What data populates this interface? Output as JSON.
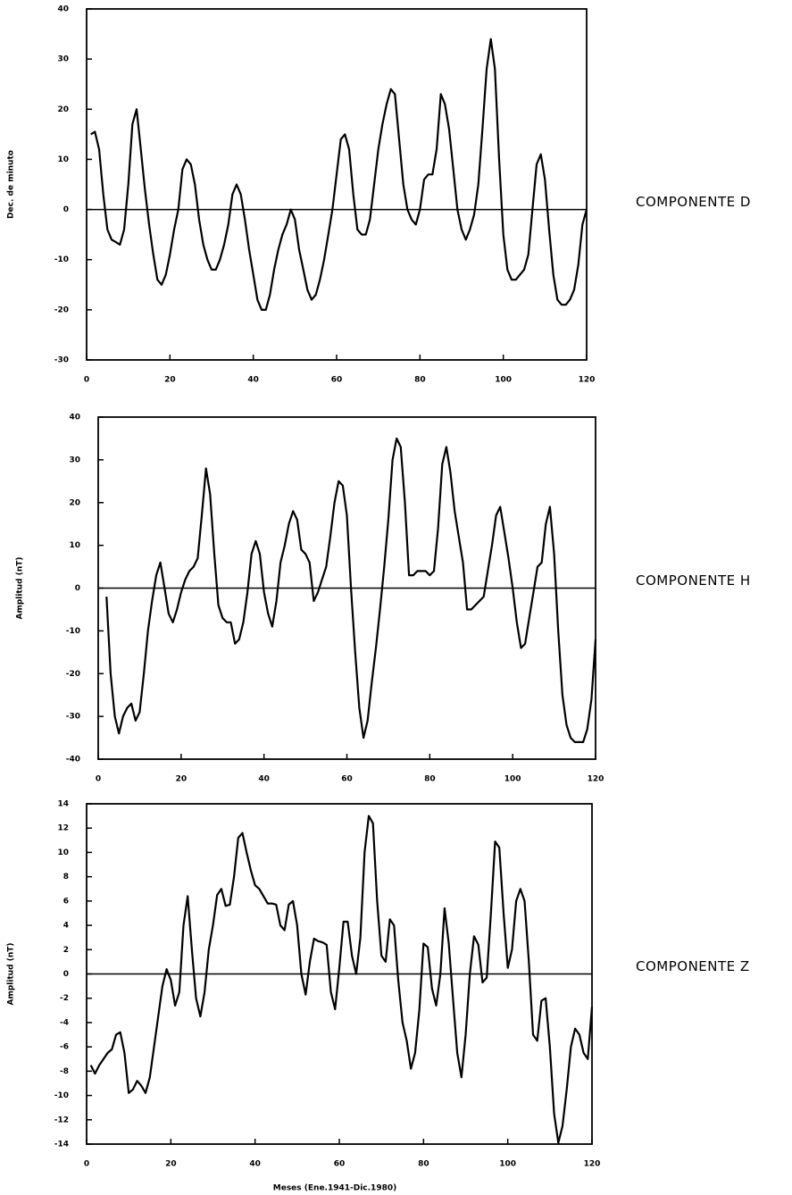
{
  "chart_data": [
    {
      "type": "line",
      "annotation": "COMPONENTE D",
      "ylabel": "Dec. de minuto",
      "xlim": [
        0,
        120
      ],
      "xticks": [
        0,
        20,
        40,
        60,
        80,
        100,
        120
      ],
      "ylim": [
        -30,
        40
      ],
      "yticks": [
        -30,
        -20,
        -10,
        0,
        10,
        20,
        30,
        40
      ],
      "x": [
        1,
        2,
        3,
        4,
        5,
        6,
        7,
        8,
        9,
        10,
        11,
        12,
        13,
        14,
        15,
        16,
        17,
        18,
        19,
        20,
        21,
        22,
        23,
        24,
        25,
        26,
        27,
        28,
        29,
        30,
        31,
        32,
        33,
        34,
        35,
        36,
        37,
        38,
        39,
        40,
        41,
        42,
        43,
        44,
        45,
        46,
        47,
        48,
        49,
        50,
        51,
        52,
        53,
        54,
        55,
        56,
        57,
        58,
        59,
        60,
        61,
        62,
        63,
        64,
        65,
        66,
        67,
        68,
        69,
        70,
        71,
        72,
        73,
        74,
        75,
        76,
        77,
        78,
        79,
        80,
        81,
        82,
        83,
        84,
        85,
        86,
        87,
        88,
        89,
        90,
        91,
        92,
        93,
        94,
        95,
        96,
        97,
        98,
        99,
        100,
        101,
        102,
        103,
        104,
        105,
        106,
        107,
        108,
        109,
        110,
        111,
        112,
        113,
        114,
        115,
        116,
        117,
        118,
        119,
        120
      ],
      "series": [
        {
          "color": "#000000",
          "values": [
            15,
            15.5,
            12,
            3,
            -4,
            -6,
            -6.5,
            -7,
            -4,
            5,
            17,
            20,
            12,
            4,
            -3,
            -9,
            -14,
            -15,
            -13,
            -9,
            -4,
            0,
            8,
            10,
            9,
            5,
            -2,
            -7,
            -10,
            -12,
            -12,
            -10,
            -7,
            -3,
            3,
            5,
            3,
            -2,
            -8,
            -13,
            -18,
            -20,
            -20,
            -17,
            -12,
            -8,
            -5,
            -3,
            0,
            -2,
            -8,
            -12,
            -16,
            -18,
            -17,
            -14,
            -10,
            -5,
            0,
            7,
            14,
            15,
            12,
            3,
            -4,
            -5,
            -5,
            -2,
            5,
            12,
            17,
            21,
            24,
            23,
            14,
            5,
            0,
            -2,
            -3,
            0,
            6,
            7,
            7,
            12,
            23,
            21,
            16,
            8,
            0,
            -4,
            -6,
            -4,
            -1,
            5,
            16,
            28,
            34,
            28,
            10,
            -5,
            -12,
            -14,
            -14,
            -13,
            -12,
            -9,
            0,
            9,
            11,
            6,
            -4,
            -13,
            -18,
            -19,
            -19,
            -18,
            -16,
            -11,
            -3,
            0
          ]
        }
      ]
    },
    {
      "type": "line",
      "annotation": "COMPONENTE H",
      "ylabel": "Amplitud (nT)",
      "xlim": [
        0,
        120
      ],
      "xticks": [
        0,
        20,
        40,
        60,
        80,
        100,
        120
      ],
      "ylim": [
        -40,
        40
      ],
      "yticks": [
        -40,
        -30,
        -20,
        -10,
        0,
        10,
        20,
        30,
        40
      ],
      "x": [
        2,
        3,
        4,
        5,
        6,
        7,
        8,
        9,
        10,
        11,
        12,
        13,
        14,
        15,
        16,
        17,
        18,
        19,
        20,
        21,
        22,
        23,
        24,
        25,
        26,
        27,
        28,
        29,
        30,
        31,
        32,
        33,
        34,
        35,
        36,
        37,
        38,
        39,
        40,
        41,
        42,
        43,
        44,
        45,
        46,
        47,
        48,
        49,
        50,
        51,
        52,
        53,
        54,
        55,
        56,
        57,
        58,
        59,
        60,
        61,
        62,
        63,
        64,
        65,
        66,
        67,
        68,
        69,
        70,
        71,
        72,
        73,
        74,
        75,
        76,
        77,
        78,
        79,
        80,
        81,
        82,
        83,
        84,
        85,
        86,
        87,
        88,
        89,
        90,
        91,
        92,
        93,
        94,
        95,
        96,
        97,
        98,
        99,
        100,
        101,
        102,
        103,
        104,
        105,
        106,
        107,
        108,
        109,
        110,
        111,
        112,
        113,
        114,
        115,
        116,
        117,
        118,
        119,
        120
      ],
      "series": [
        {
          "color": "#000000",
          "values": [
            -2,
            -20,
            -30,
            -34,
            -30,
            -28,
            -27,
            -31,
            -29,
            -20,
            -10,
            -3,
            3,
            6,
            0,
            -6,
            -8,
            -5,
            -1,
            2,
            4,
            5,
            7,
            17,
            28,
            22,
            8,
            -4,
            -7,
            -8,
            -8,
            -13,
            -12,
            -8,
            -1,
            8,
            11,
            8,
            -1,
            -6,
            -9,
            -3,
            6,
            10,
            15,
            18,
            16,
            9,
            8,
            6,
            -3,
            -1,
            2,
            5,
            12,
            20,
            25,
            24,
            17,
            0,
            -15,
            -28,
            -35,
            -31,
            -22,
            -14,
            -5,
            5,
            16,
            30,
            35,
            33,
            20,
            3,
            3,
            4,
            4,
            4,
            3,
            4,
            14,
            29,
            33,
            27,
            18,
            12,
            6,
            -5,
            -5,
            -4,
            -3,
            -2,
            4,
            10,
            17,
            19,
            13,
            7,
            0,
            -8,
            -14,
            -13,
            -7,
            -1,
            5,
            6,
            15,
            19,
            8,
            -10,
            -25,
            -32,
            -35,
            -36,
            -36,
            -36,
            -33,
            -26,
            -12
          ]
        }
      ]
    },
    {
      "type": "line",
      "annotation": "COMPONENTE Z",
      "ylabel": "Amplitud (nT)",
      "xlabel": "Meses (Ene.1941-Dic.1980)",
      "xlim": [
        0,
        120
      ],
      "xticks": [
        0,
        20,
        40,
        60,
        80,
        100,
        120
      ],
      "ylim": [
        -14,
        14
      ],
      "yticks": [
        -14,
        -12,
        -10,
        -8,
        -6,
        -4,
        -2,
        0,
        2,
        4,
        6,
        8,
        10,
        12,
        14
      ],
      "x": [
        1,
        2,
        3,
        4,
        5,
        6,
        7,
        8,
        9,
        10,
        11,
        12,
        13,
        14,
        15,
        16,
        17,
        18,
        19,
        20,
        21,
        22,
        23,
        24,
        25,
        26,
        27,
        28,
        29,
        30,
        31,
        32,
        33,
        34,
        35,
        36,
        37,
        38,
        39,
        40,
        41,
        42,
        43,
        44,
        45,
        46,
        47,
        48,
        49,
        50,
        51,
        52,
        53,
        54,
        55,
        56,
        57,
        58,
        59,
        60,
        61,
        62,
        63,
        64,
        65,
        66,
        67,
        68,
        69,
        70,
        71,
        72,
        73,
        74,
        75,
        76,
        77,
        78,
        79,
        80,
        81,
        82,
        83,
        84,
        85,
        86,
        87,
        88,
        89,
        90,
        91,
        92,
        93,
        94,
        95,
        96,
        97,
        98,
        99,
        100,
        101,
        102,
        103,
        104,
        105,
        106,
        107,
        108,
        109,
        110,
        111,
        112,
        113,
        114,
        115,
        116,
        117,
        118,
        119,
        120
      ],
      "series": [
        {
          "color": "#000000",
          "values": [
            -7.5,
            -8.2,
            -7.5,
            -7,
            -6.5,
            -6.2,
            -5,
            -4.8,
            -6.5,
            -9.8,
            -9.5,
            -8.8,
            -9.2,
            -9.8,
            -8.5,
            -6,
            -3.5,
            -1,
            0.4,
            -0.5,
            -2.6,
            -1.5,
            4,
            6.4,
            2,
            -2,
            -3.5,
            -1.5,
            2,
            4,
            6.5,
            7,
            5.6,
            5.7,
            8,
            11.2,
            11.6,
            10,
            8.5,
            7.3,
            7,
            6.4,
            5.8,
            5.8,
            5.7,
            4,
            3.6,
            5.7,
            6,
            4,
            0,
            -1.7,
            1,
            2.9,
            2.7,
            2.6,
            2.4,
            -1.5,
            -2.9,
            0.5,
            4.3,
            4.3,
            1.5,
            0,
            3,
            10,
            13,
            12.4,
            6,
            1.5,
            1,
            4.5,
            4,
            -0.5,
            -4,
            -5.5,
            -7.8,
            -6.5,
            -3,
            2.5,
            2.2,
            -1.2,
            -2.6,
            0,
            5.4,
            2.5,
            -2,
            -6.5,
            -8.5,
            -5,
            0,
            3.1,
            2.4,
            -0.7,
            -0.3,
            5,
            10.9,
            10.4,
            5,
            0.5,
            2,
            6,
            7,
            6,
            1,
            -5,
            -5.5,
            -2.2,
            -2,
            -6,
            -11.5,
            -13.9,
            -12.5,
            -9.5,
            -6,
            -4.5,
            -5,
            -6.5,
            -7,
            -2.7
          ]
        }
      ]
    }
  ]
}
